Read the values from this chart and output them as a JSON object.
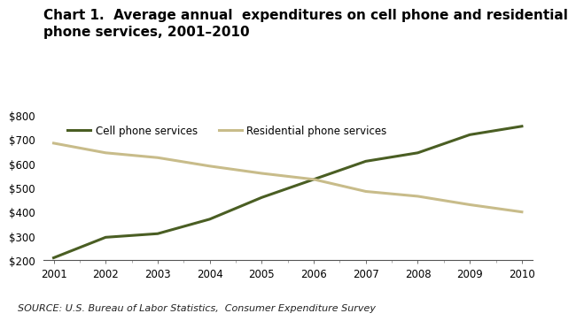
{
  "title": "Chart 1.  Average annual  expenditures on cell phone and residential\nphone services, 2001–2010",
  "years": [
    2001,
    2002,
    2003,
    2004,
    2005,
    2006,
    2007,
    2008,
    2009,
    2010
  ],
  "cell_phone": [
    210,
    295,
    310,
    370,
    460,
    535,
    610,
    645,
    720,
    755
  ],
  "residential": [
    685,
    645,
    625,
    590,
    560,
    535,
    485,
    465,
    430,
    400
  ],
  "cell_color": "#4a5e23",
  "residential_color": "#c8bc8a",
  "cell_label": "Cell phone services",
  "residential_label": "Residential phone services",
  "ylim": [
    200,
    800
  ],
  "yticks": [
    200,
    300,
    400,
    500,
    600,
    700,
    800
  ],
  "xticks": [
    2001,
    2002,
    2003,
    2004,
    2005,
    2006,
    2007,
    2008,
    2009,
    2010
  ],
  "source_text": "SOURCE: U.S. Bureau of Labor Statistics,  Consumer Expenditure Survey",
  "line_width": 2.2,
  "background_color": "#ffffff",
  "title_fontsize": 11,
  "tick_fontsize": 8.5,
  "legend_fontsize": 8.5,
  "source_fontsize": 8
}
